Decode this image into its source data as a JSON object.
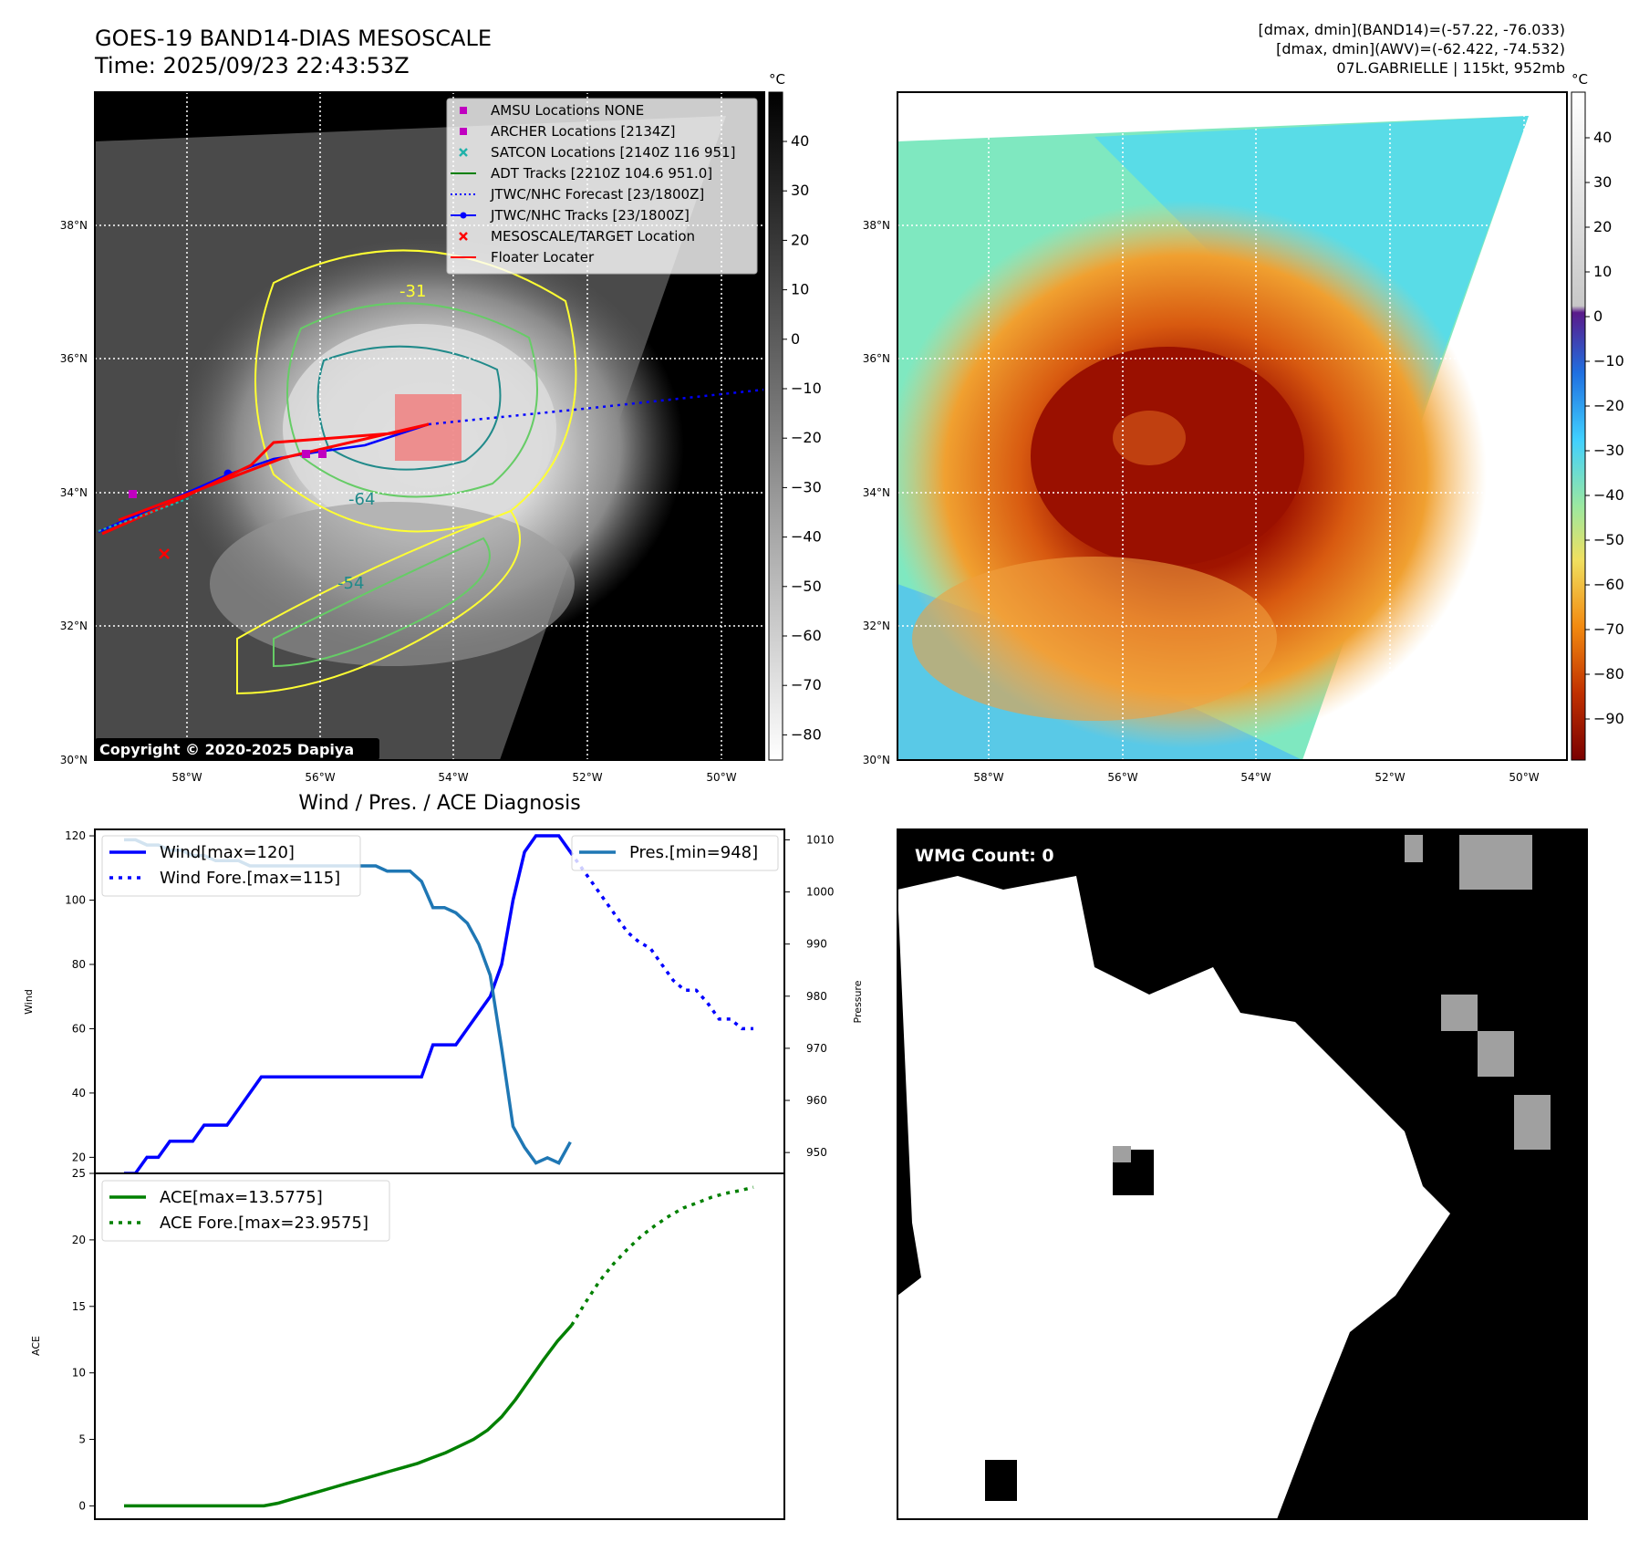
{
  "header": {
    "title_line1": "GOES-19 BAND14-DIAS MESOSCALE",
    "title_line2": "Time: 2025/09/23 22:43:53Z",
    "info_line1": "[dmax, dmin](BAND14)=(-57.22, -76.033)",
    "info_line2": "[dmax, dmin](AWV)=(-62.422, -74.532)",
    "info_line3": "07L.GABRIELLE | 115kt, 952mb"
  },
  "ir_map": {
    "copyright": "Copyright © 2020-2025 Dapiya",
    "lat_labels": [
      "38°N",
      "36°N",
      "34°N",
      "32°N",
      "30°N"
    ],
    "lon_labels": [
      "58°W",
      "56°W",
      "54°W",
      "52°W",
      "50°W"
    ],
    "contour_labels": [
      "-31",
      "-64",
      "-54"
    ],
    "legend": [
      {
        "label": "AMSU Locations NONE",
        "marker": "square",
        "color": "#c000c0"
      },
      {
        "label": "ARCHER Locations [2134Z]",
        "marker": "square",
        "color": "#c000c0"
      },
      {
        "label": "SATCON Locations [2140Z 116 951]",
        "marker": "x",
        "color": "#20b2aa"
      },
      {
        "label": "ADT Tracks [2210Z 104.6 951.0]",
        "marker": "line",
        "color": "#008000"
      },
      {
        "label": "JTWC/NHC Forecast [23/1800Z]",
        "marker": "dotted",
        "color": "#0000ff"
      },
      {
        "label": "JTWC/NHC Tracks [23/1800Z]",
        "marker": "line-dot",
        "color": "#0000ff"
      },
      {
        "label": "MESOSCALE/TARGET Location",
        "marker": "x",
        "color": "#ff0000"
      },
      {
        "label": "Floater Locater",
        "marker": "line",
        "color": "#ff0000"
      }
    ],
    "colorbar": {
      "unit": "°C",
      "ticks": [
        "40",
        "30",
        "20",
        "10",
        "0",
        "−10",
        "−20",
        "−30",
        "−40",
        "−50",
        "−60",
        "−70",
        "−80"
      ]
    }
  },
  "awv_map": {
    "lat_labels": [
      "38°N",
      "36°N",
      "34°N",
      "32°N",
      "30°N"
    ],
    "lon_labels": [
      "58°W",
      "56°W",
      "54°W",
      "52°W",
      "50°W"
    ],
    "colorbar": {
      "unit": "°C",
      "ticks": [
        "40",
        "30",
        "20",
        "10",
        "0",
        "−10",
        "−20",
        "−30",
        "−40",
        "−50",
        "−60",
        "−70",
        "−80",
        "−90"
      ]
    }
  },
  "wmg": {
    "label": "WMG Count: 0"
  },
  "chart_data": [
    {
      "type": "line",
      "title": "Wind / Pres. / ACE Diagnosis",
      "ylabel": "Wind",
      "y2label": "Pressure",
      "ylim": [
        15,
        122
      ],
      "y2lim": [
        946,
        1012
      ],
      "yticks": [
        20,
        40,
        60,
        80,
        100,
        120
      ],
      "y2ticks": [
        950,
        960,
        970,
        980,
        990,
        1000,
        1010
      ],
      "series": [
        {
          "name": "Wind[max=120]",
          "color": "#0000ff",
          "style": "solid",
          "values": [
            15,
            15,
            20,
            20,
            25,
            25,
            25,
            30,
            30,
            30,
            35,
            40,
            45,
            45,
            45,
            45,
            45,
            45,
            45,
            45,
            45,
            45,
            45,
            45,
            45,
            45,
            45,
            55,
            55,
            55,
            60,
            65,
            70,
            80,
            100,
            115,
            120,
            120,
            120,
            115
          ]
        },
        {
          "name": "Wind Fore.[max=115]",
          "color": "#0000ff",
          "style": "dotted",
          "values": [
            null,
            null,
            null,
            null,
            null,
            null,
            null,
            null,
            null,
            null,
            null,
            null,
            null,
            null,
            null,
            null,
            null,
            null,
            null,
            null,
            null,
            null,
            null,
            null,
            null,
            null,
            null,
            null,
            null,
            null,
            null,
            null,
            null,
            null,
            null,
            null,
            null,
            null,
            null,
            115,
            110,
            105,
            100,
            95,
            90,
            87,
            85,
            80,
            75,
            72,
            72,
            68,
            63,
            63,
            60,
            60
          ]
        },
        {
          "name": "Pres.[min=948]",
          "color": "#1f77b4",
          "style": "solid",
          "axis": "right",
          "values": [
            1010,
            1010,
            1009,
            1009,
            1008,
            1008,
            1007,
            1007,
            1006,
            1006,
            1006,
            1005,
            1005,
            1005,
            1005,
            1005,
            1005,
            1005,
            1005,
            1005,
            1005,
            1005,
            1005,
            1004,
            1004,
            1004,
            1002,
            997,
            997,
            996,
            994,
            990,
            984,
            970,
            955,
            951,
            948,
            949,
            948,
            952
          ]
        }
      ]
    },
    {
      "type": "line",
      "ylabel": "ACE",
      "ylim": [
        -1,
        25
      ],
      "yticks": [
        0,
        5,
        10,
        15,
        20,
        25
      ],
      "series": [
        {
          "name": "ACE[max=13.5775]",
          "color": "#008000",
          "style": "solid",
          "values": [
            0,
            0,
            0,
            0,
            0,
            0,
            0,
            0,
            0,
            0,
            0,
            0.2,
            0.5,
            0.8,
            1.1,
            1.4,
            1.7,
            2.0,
            2.3,
            2.6,
            2.9,
            3.2,
            3.6,
            4.0,
            4.5,
            5.0,
            5.7,
            6.7,
            8.0,
            9.5,
            11.0,
            12.4,
            13.58
          ]
        },
        {
          "name": "ACE Fore.[max=23.9575]",
          "color": "#008000",
          "style": "dotted",
          "values": [
            null,
            null,
            null,
            null,
            null,
            null,
            null,
            null,
            null,
            null,
            null,
            null,
            null,
            null,
            null,
            null,
            null,
            null,
            null,
            null,
            null,
            null,
            null,
            null,
            null,
            null,
            null,
            null,
            null,
            null,
            null,
            null,
            13.58,
            15.3,
            16.9,
            18.2,
            19.3,
            20.3,
            21.1,
            21.8,
            22.4,
            22.8,
            23.2,
            23.5,
            23.7,
            23.96
          ]
        }
      ]
    }
  ]
}
